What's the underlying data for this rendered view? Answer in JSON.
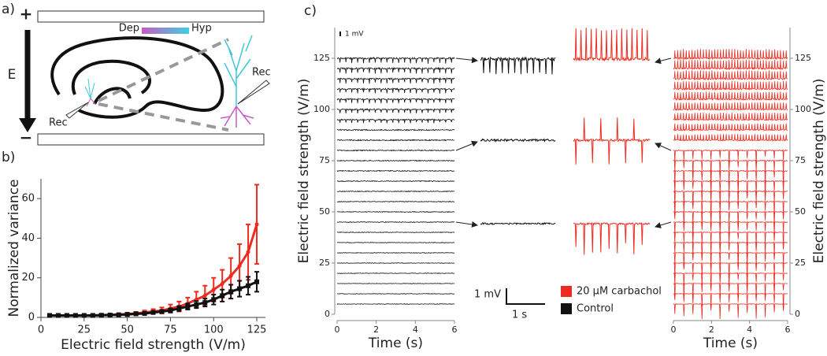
{
  "panel_labels": [
    "a)",
    "b)",
    "c)"
  ],
  "diagram": {
    "plus": "+",
    "minus": "−",
    "field": "E",
    "dep": "Dep",
    "hyp": "Hyp",
    "rec_left": "Rec",
    "rec_right": "Rec"
  },
  "annotations": {
    "top_scale": "1 mV",
    "scale_v": "1 mV",
    "scale_t": "1 s"
  },
  "chart_data": [
    {
      "type": "line",
      "xlabel": "Electric field strength (V/m)",
      "ylabel": "Normalized variance",
      "xlim": [
        0,
        130
      ],
      "ylim": [
        0,
        70
      ],
      "xticks": [
        0,
        25,
        50,
        75,
        100,
        125
      ],
      "yticks": [
        0,
        20,
        40,
        60
      ],
      "x": [
        5,
        10,
        15,
        20,
        25,
        30,
        35,
        40,
        45,
        50,
        55,
        60,
        65,
        70,
        75,
        80,
        85,
        90,
        95,
        100,
        105,
        110,
        115,
        120,
        125
      ],
      "series": [
        {
          "name": "20 μM carbachol",
          "color": "#ee2b1f",
          "values": [
            1,
            1,
            1,
            1,
            1,
            1,
            1.2,
            1.3,
            1.5,
            1.7,
            2,
            2.5,
            3,
            3.5,
            4.5,
            5.5,
            7,
            9,
            11,
            14,
            17,
            21,
            26,
            33,
            47
          ],
          "errors": [
            0.3,
            0.3,
            0.3,
            0.3,
            0.3,
            0.4,
            0.4,
            0.5,
            0.6,
            0.7,
            0.8,
            1,
            1.2,
            1.5,
            2,
            2.5,
            3,
            4,
            5,
            6,
            7,
            9,
            11,
            14,
            20
          ]
        },
        {
          "name": "Control",
          "color": "#111111",
          "values": [
            1,
            1,
            1,
            1,
            1,
            1,
            1.1,
            1.2,
            1.3,
            1.5,
            1.8,
            2,
            2.5,
            3,
            3.5,
            4.5,
            5.5,
            6.5,
            7.5,
            9,
            11,
            13,
            14.5,
            16,
            18
          ],
          "errors": [
            0.3,
            0.3,
            0.3,
            0.3,
            0.3,
            0.3,
            0.3,
            0.4,
            0.4,
            0.5,
            0.5,
            0.6,
            0.7,
            0.8,
            1,
            1.2,
            1.5,
            1.8,
            2,
            2.5,
            3,
            3.5,
            4,
            4.5,
            5
          ]
        }
      ]
    },
    {
      "type": "traces",
      "color": "#111111",
      "xlabel": "Time (s)",
      "ylabel": "Electric field strength (V/m)",
      "xlim": [
        0,
        6
      ],
      "ylim": [
        0,
        140
      ],
      "xticks": [
        0,
        2,
        4,
        6
      ],
      "yticks": [
        0,
        25,
        50,
        75,
        100,
        125
      ],
      "levels": [
        5,
        10,
        15,
        20,
        25,
        30,
        35,
        40,
        45,
        50,
        55,
        60,
        65,
        70,
        75,
        80,
        85,
        90,
        95,
        100,
        105,
        110,
        115,
        120,
        125
      ]
    },
    {
      "type": "traces",
      "color": "#ee2b1f",
      "xlabel": "Time (s)",
      "ylabel": "Electric field strength (V/m)",
      "xlim": [
        0,
        6
      ],
      "ylim": [
        0,
        140
      ],
      "xticks": [
        0,
        2,
        4,
        6
      ],
      "yticks": [
        0,
        25,
        50,
        75,
        100,
        125
      ],
      "levels": [
        5,
        10,
        15,
        20,
        25,
        30,
        35,
        40,
        45,
        50,
        55,
        60,
        65,
        70,
        75,
        80,
        85,
        90,
        95,
        100,
        105,
        110,
        115,
        120,
        125
      ]
    }
  ]
}
